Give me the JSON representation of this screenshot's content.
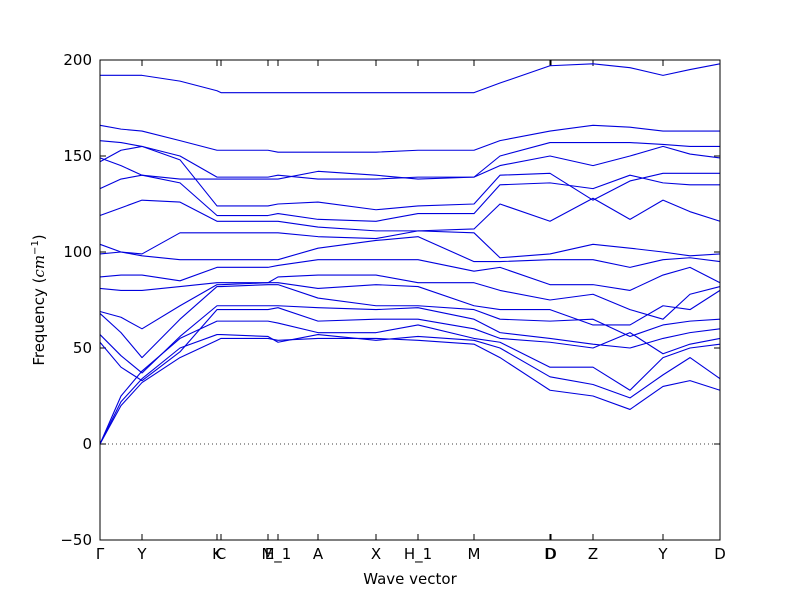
{
  "chart_data": {
    "type": "line",
    "xlabel": "Wave vector",
    "ylabel": "Frequency (",
    "ylabel_unit": "cm",
    "ylabel_exp": "−1",
    "ylabel_close": ")",
    "color": "#0000dd",
    "xlim": [
      0,
      620
    ],
    "ylim": [
      -50,
      200
    ],
    "yticks": [
      200,
      150,
      100,
      50,
      0,
      {
        "value": -50,
        "label": "−50"
      }
    ],
    "xticks": [
      {
        "value": 0,
        "label": "Γ"
      },
      {
        "value": 42,
        "label": "Y"
      },
      {
        "value": 117,
        "label": "K"
      },
      {
        "value": 121,
        "label": "C"
      },
      {
        "value": 168,
        "label": "M"
      },
      {
        "value": 178,
        "label": "E_1"
      },
      {
        "value": 218,
        "label": "A"
      },
      {
        "value": 276,
        "label": "X"
      },
      {
        "value": 318,
        "label": "H_1"
      },
      {
        "value": 374,
        "label": "M"
      },
      {
        "value": 450,
        "label": "D"
      },
      {
        "value": 451,
        "label": "D"
      },
      {
        "value": 493,
        "label": "Z"
      },
      {
        "value": 563,
        "label": "Y"
      },
      {
        "value": 620,
        "label": "D"
      }
    ],
    "zero_line": true,
    "x": [
      0,
      21,
      42,
      80,
      117,
      121,
      168,
      178,
      218,
      276,
      318,
      374,
      400,
      450,
      493,
      530,
      563,
      590,
      620
    ],
    "series": [
      {
        "values": [
          0,
          20,
          32,
          45,
          54,
          55,
          55,
          54,
          55,
          55,
          54,
          52,
          45,
          28,
          25,
          18,
          30,
          33,
          28
        ]
      },
      {
        "values": [
          0,
          22,
          34,
          50,
          57,
          57,
          56,
          53,
          57,
          54,
          56,
          54,
          50,
          35,
          31,
          24,
          36,
          45,
          34
        ]
      },
      {
        "values": [
          0,
          25,
          38,
          55,
          64,
          64,
          64,
          63,
          58,
          58,
          62,
          55,
          53,
          40,
          40,
          28,
          45,
          50,
          52
        ]
      },
      {
        "values": [
          53,
          40,
          33,
          48,
          70,
          70,
          70,
          71,
          64,
          65,
          65,
          60,
          55,
          53,
          50,
          58,
          47,
          52,
          55
        ]
      },
      {
        "values": [
          57,
          46,
          37,
          56,
          72,
          72,
          72,
          72,
          71,
          70,
          71,
          65,
          58,
          55,
          52,
          50,
          55,
          58,
          60
        ]
      },
      {
        "values": [
          68,
          58,
          45,
          65,
          82,
          82,
          83,
          83,
          76,
          72,
          72,
          70,
          65,
          64,
          65,
          56,
          62,
          64,
          65
        ]
      },
      {
        "values": [
          69,
          66,
          60,
          72,
          83,
          83,
          84,
          84,
          81,
          83,
          82,
          72,
          70,
          70,
          62,
          62,
          72,
          70,
          80
        ]
      },
      {
        "values": [
          81,
          80,
          80,
          82,
          84,
          84,
          84,
          87,
          88,
          88,
          84,
          84,
          80,
          75,
          78,
          70,
          65,
          78,
          82
        ]
      },
      {
        "values": [
          87,
          88,
          88,
          85,
          92,
          92,
          92,
          93,
          96,
          96,
          96,
          90,
          92,
          83,
          83,
          80,
          88,
          92,
          84
        ]
      },
      {
        "values": [
          99,
          100,
          98,
          96,
          96,
          96,
          96,
          96,
          102,
          106,
          108,
          95,
          95,
          96,
          96,
          92,
          96,
          97,
          95
        ]
      },
      {
        "values": [
          104,
          100,
          99,
          110,
          110,
          110,
          110,
          110,
          108,
          107,
          111,
          110,
          97,
          99,
          104,
          102,
          100,
          98,
          99
        ]
      },
      {
        "values": [
          119,
          123,
          127,
          126,
          116,
          116,
          116,
          116,
          113,
          111,
          111,
          112,
          125,
          116,
          128,
          117,
          127,
          121,
          116
        ]
      },
      {
        "values": [
          133,
          138,
          140,
          136,
          119,
          119,
          119,
          120,
          117,
          116,
          120,
          120,
          135,
          136,
          133,
          140,
          136,
          135,
          135
        ]
      },
      {
        "values": [
          147,
          153,
          155,
          148,
          124,
          124,
          124,
          125,
          126,
          122,
          124,
          125,
          140,
          141,
          127,
          137,
          141,
          141,
          141
        ]
      },
      {
        "values": [
          149,
          145,
          140,
          138,
          138,
          138,
          138,
          138,
          142,
          140,
          138,
          139,
          145,
          150,
          145,
          150,
          155,
          151,
          149
        ]
      },
      {
        "values": [
          158,
          157,
          155,
          150,
          139,
          139,
          139,
          140,
          138,
          138,
          139,
          139,
          150,
          157,
          157,
          157,
          156,
          155,
          155
        ]
      },
      {
        "values": [
          166,
          164,
          163,
          158,
          153,
          153,
          153,
          152,
          152,
          152,
          153,
          153,
          158,
          163,
          166,
          165,
          163,
          163,
          163
        ]
      },
      {
        "values": [
          192,
          192,
          192,
          189,
          184,
          183,
          183,
          183,
          183,
          183,
          183,
          183,
          188,
          197,
          198,
          196,
          192,
          195,
          198
        ]
      }
    ]
  }
}
